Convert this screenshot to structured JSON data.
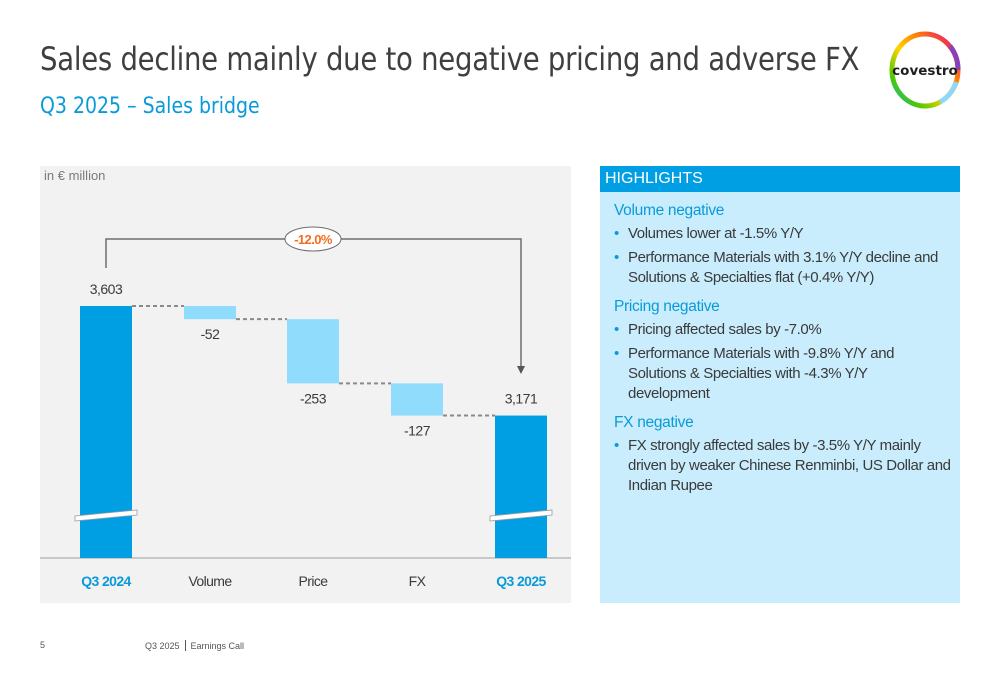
{
  "header": {
    "title": "Sales decline mainly due to negative pricing and adverse FX",
    "subtitle": "Q3 2025 – Sales bridge",
    "logo_text": "covestro"
  },
  "colors": {
    "total_bar": "#009fe3",
    "delta_bar": "#8fdcfd",
    "accent_blue": "#0a9ad8",
    "change_orange": "#f26f21",
    "panel_bg": "#f2f2f2",
    "highlights_bg": "#c9edfc"
  },
  "chart_data": {
    "type": "bar",
    "subtype": "waterfall",
    "title": "Q3 2025 – Sales bridge",
    "unit_label": "in € million",
    "categories": [
      "Q3 2024",
      "Volume",
      "Price",
      "FX",
      "Q3 2025"
    ],
    "values": [
      3603,
      -52,
      -253,
      -127,
      3171
    ],
    "value_labels": [
      "3,603",
      "-52",
      "-253",
      "-127",
      "3,171"
    ],
    "bar_kinds": [
      "total",
      "delta",
      "delta",
      "delta",
      "total"
    ],
    "highlighted_categories": [
      "Q3 2024",
      "Q3 2025"
    ],
    "axis_break": true,
    "change_annotation": {
      "from": "Q3 2024",
      "to": "Q3 2025",
      "label": "-12.0%"
    },
    "xlabel": "",
    "ylabel": "",
    "grid": false,
    "legend": "none"
  },
  "highlights": {
    "header": "HIGHLIGHTS",
    "sections": [
      {
        "title": "Volume negative",
        "bullets": [
          "Volumes lower at -1.5% Y/Y",
          "Performance Materials with 3.1% Y/Y decline and Solutions & Specialties flat (+0.4% Y/Y)"
        ]
      },
      {
        "title": "Pricing negative",
        "bullets": [
          "Pricing affected sales by -7.0%",
          "Performance Materials with -9.8% Y/Y and Solutions & Specialties with -4.3% Y/Y development"
        ]
      },
      {
        "title": "FX negative",
        "bullets": [
          "FX strongly affected sales by -3.5% Y/Y mainly driven by weaker Chinese Renminbi, US Dollar and Indian Rupee"
        ]
      }
    ]
  },
  "footer": {
    "page_number": "5",
    "period": "Q3 2025",
    "event": "Earnings Call"
  }
}
